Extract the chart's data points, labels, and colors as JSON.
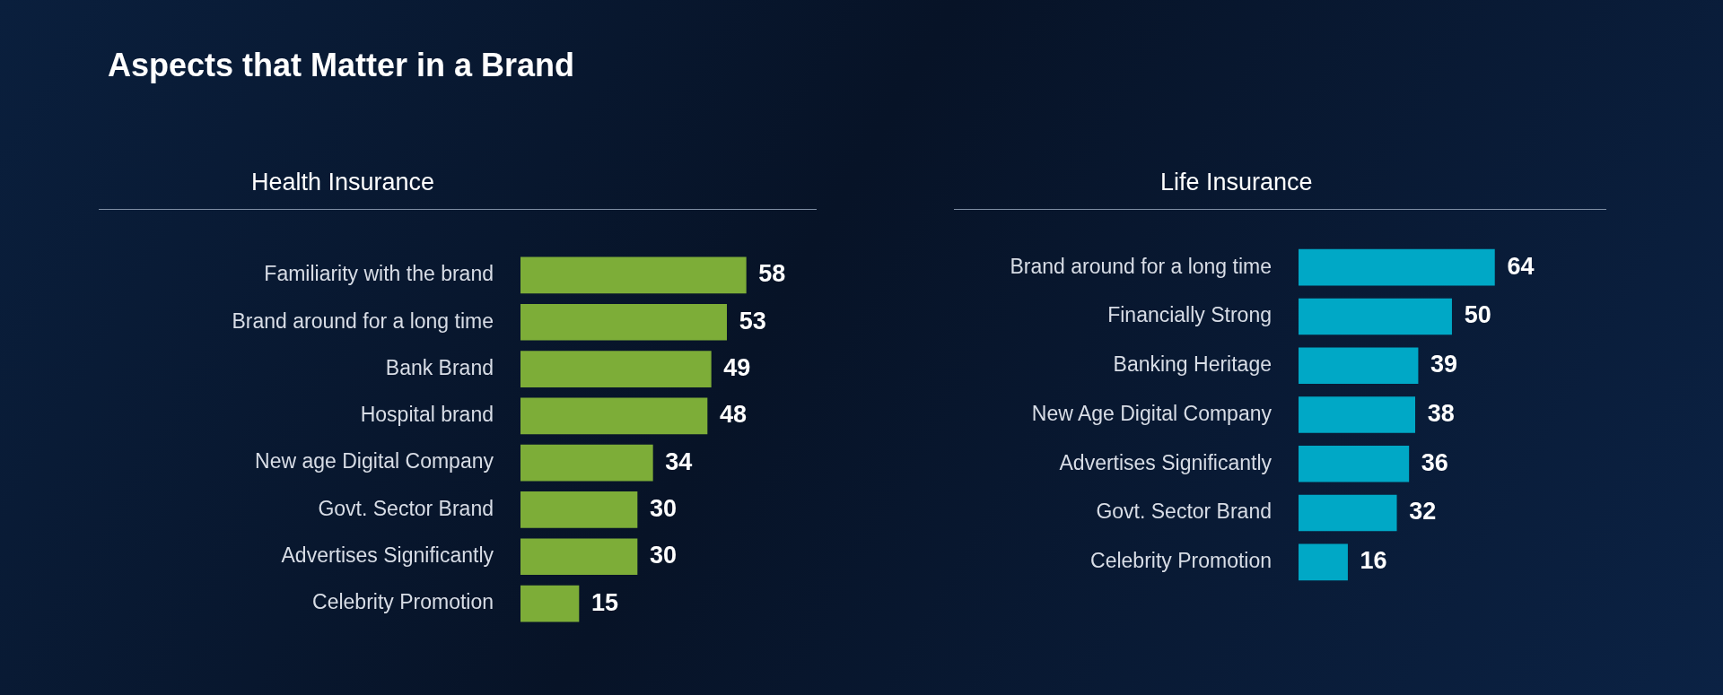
{
  "chart_data": [
    {
      "type": "bar",
      "title": "Aspects that Matter in a Brand",
      "subtitle": "Health Insurance",
      "orientation": "horizontal",
      "data_labels": true,
      "color": "#7dad38",
      "categories": [
        "Familiarity with the brand",
        "Brand around for a long time",
        "Bank Brand",
        "Hospital brand",
        "New age Digital Company",
        "Govt. Sector Brand",
        "Advertises Significantly",
        "Celebrity Promotion"
      ],
      "values": [
        58,
        53,
        49,
        48,
        34,
        30,
        30,
        15
      ]
    },
    {
      "type": "bar",
      "subtitle": "Life Insurance",
      "orientation": "horizontal",
      "data_labels": true,
      "color": "#00a8c6",
      "categories": [
        "Brand around for a long time",
        "Financially Strong",
        "Banking Heritage",
        "New Age Digital Company",
        "Advertises Significantly",
        "Govt. Sector Brand",
        "Celebrity Promotion"
      ],
      "values": [
        64,
        50,
        39,
        38,
        36,
        32,
        16
      ]
    }
  ]
}
